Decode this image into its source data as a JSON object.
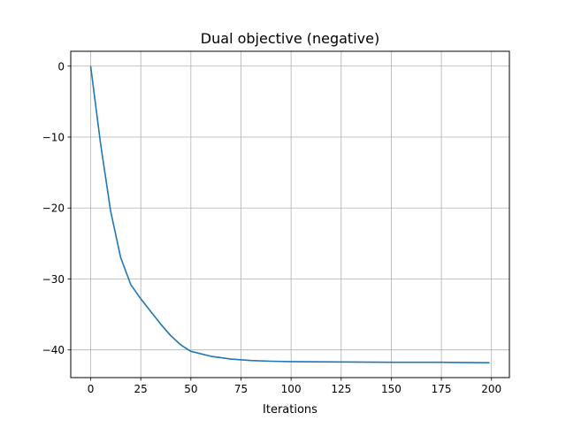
{
  "chart_data": {
    "type": "line",
    "title": "Dual objective (negative)",
    "xlabel": "Iterations",
    "ylabel": "",
    "xlim": [
      -9.95,
      208.95
    ],
    "ylim": [
      -43.9,
      2.09
    ],
    "xticks": [
      0,
      25,
      50,
      75,
      100,
      125,
      150,
      175,
      200
    ],
    "yticks": [
      0,
      -10,
      -20,
      -30,
      -40
    ],
    "ytick_labels": [
      "0",
      "−10",
      "−20",
      "−30",
      "−40"
    ],
    "grid": true,
    "series": [
      {
        "color": "#1f77b4",
        "x": [
          0,
          5,
          10,
          15,
          20,
          25,
          30,
          35,
          40,
          45,
          50,
          60,
          70,
          80,
          90,
          100,
          125,
          150,
          175,
          199
        ],
        "y": [
          0,
          -11.1,
          -20.5,
          -27.0,
          -30.8,
          -32.8,
          -34.6,
          -36.4,
          -38.0,
          -39.3,
          -40.2,
          -40.9,
          -41.3,
          -41.5,
          -41.6,
          -41.65,
          -41.7,
          -41.75,
          -41.75,
          -41.8
        ]
      }
    ]
  }
}
